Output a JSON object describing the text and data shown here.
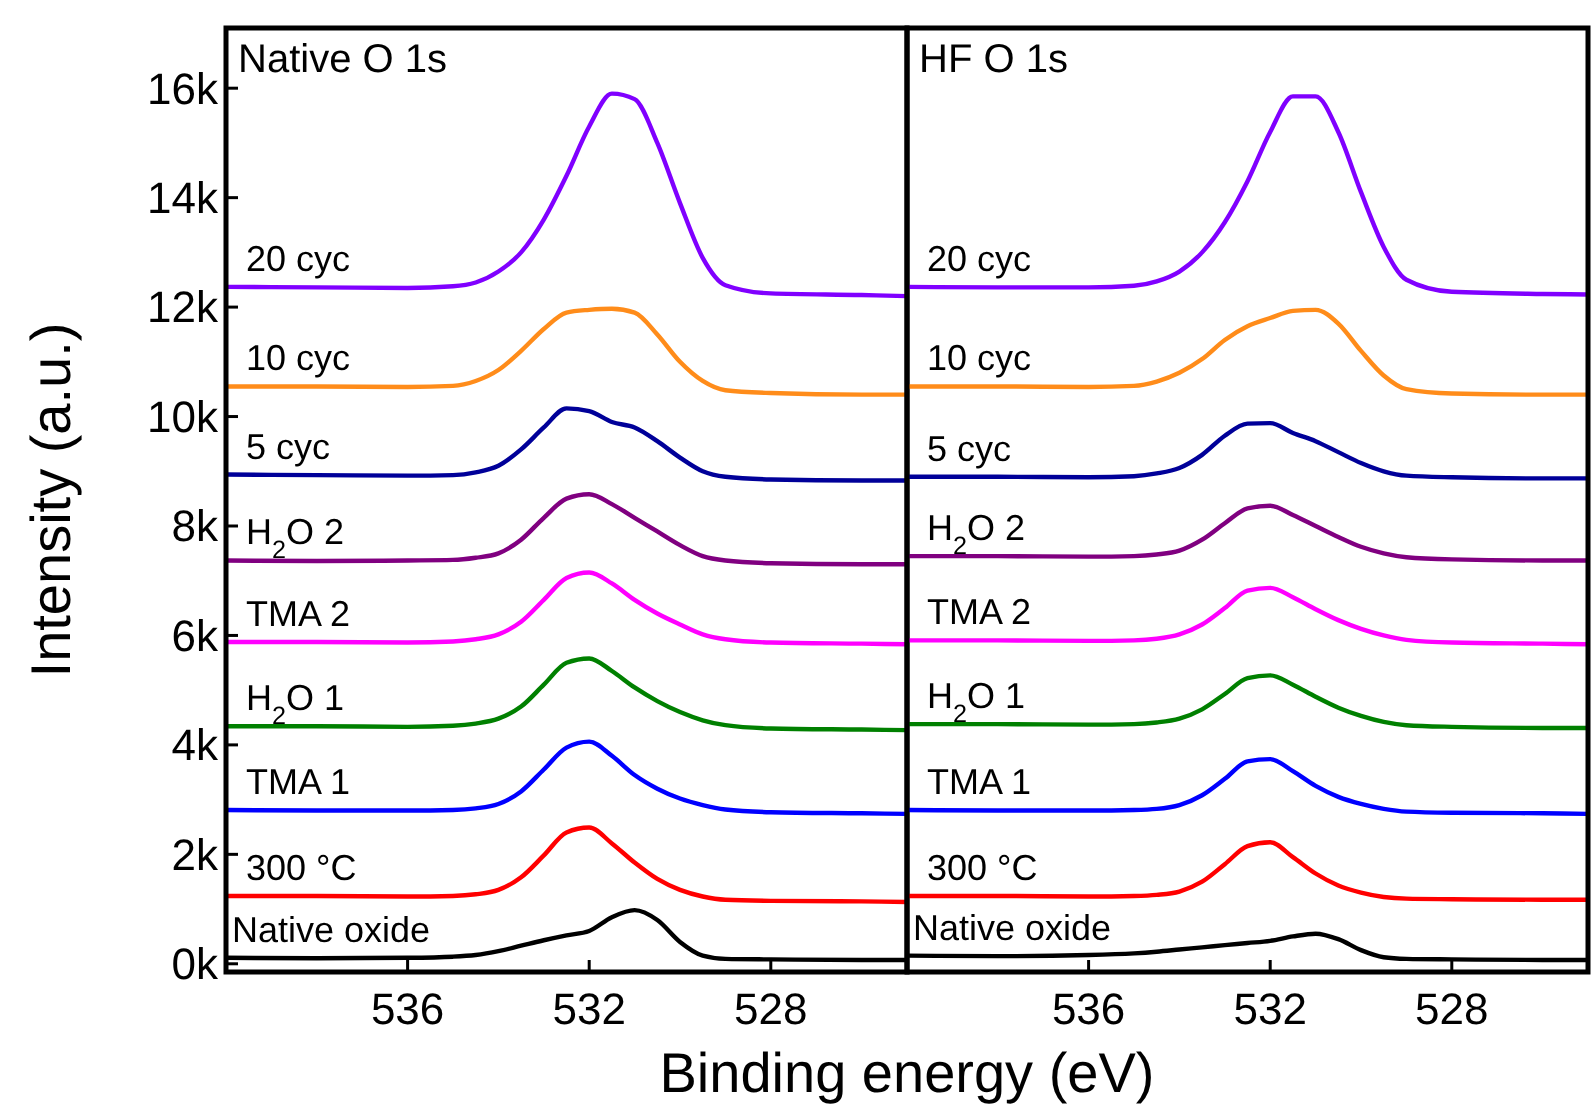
{
  "chart_data": [
    {
      "type": "line",
      "title": "Native O 1s",
      "xlabel": "Binding energy (eV)",
      "ylabel": "Intensity (a.u.)",
      "xlim": [
        540,
        525
      ],
      "xticks": [
        536,
        532,
        528
      ],
      "ylim": [
        -150,
        17100
      ],
      "yticks": [
        {
          "value": 0,
          "label": "0k"
        },
        {
          "value": 2000,
          "label": "2k"
        },
        {
          "value": 4000,
          "label": "4k"
        },
        {
          "value": 6000,
          "label": "6k"
        },
        {
          "value": 8000,
          "label": "8k"
        },
        {
          "value": 10000,
          "label": "10k"
        },
        {
          "value": 12000,
          "label": "12k"
        },
        {
          "value": 14000,
          "label": "14k"
        },
        {
          "value": 16000,
          "label": "16k"
        }
      ],
      "x": [
        540,
        538,
        536,
        535,
        534.5,
        534,
        533.5,
        533,
        532.5,
        532,
        531.5,
        531,
        530.5,
        530,
        529.5,
        529,
        528,
        526,
        525
      ],
      "series": [
        {
          "name": "Native oxide",
          "color": "#000000",
          "values": [
            110,
            100,
            110,
            130,
            160,
            230,
            330,
            430,
            520,
            600,
            850,
            980,
            800,
            400,
            150,
            90,
            80,
            70,
            70
          ]
        },
        {
          "name": "300 °C",
          "color": "#ff0000",
          "values": [
            1240,
            1240,
            1230,
            1240,
            1270,
            1350,
            1580,
            1980,
            2400,
            2490,
            2200,
            1850,
            1550,
            1350,
            1230,
            1170,
            1150,
            1140,
            1130
          ]
        },
        {
          "name": "TMA 1",
          "color": "#0000ff",
          "values": [
            2810,
            2800,
            2800,
            2810,
            2840,
            2920,
            3150,
            3550,
            3950,
            4060,
            3800,
            3450,
            3200,
            3020,
            2900,
            2820,
            2770,
            2750,
            2740
          ]
        },
        {
          "name": "H$_{2}$O 1",
          "color": "#008000",
          "values": [
            4340,
            4340,
            4330,
            4350,
            4390,
            4480,
            4700,
            5100,
            5500,
            5580,
            5350,
            5050,
            4800,
            4600,
            4450,
            4360,
            4300,
            4280,
            4270
          ]
        },
        {
          "name": "TMA 2",
          "color": "#ff00ff",
          "values": [
            5880,
            5880,
            5870,
            5890,
            5930,
            6020,
            6250,
            6650,
            7050,
            7150,
            6950,
            6650,
            6400,
            6200,
            6020,
            5930,
            5870,
            5850,
            5840
          ]
        },
        {
          "name": "H$_{2}$O 2",
          "color": "#800080",
          "values": [
            7370,
            7360,
            7370,
            7380,
            7420,
            7500,
            7750,
            8150,
            8500,
            8580,
            8400,
            8150,
            7900,
            7650,
            7450,
            7370,
            7320,
            7300,
            7300
          ]
        },
        {
          "name": "5 cyc",
          "color": "#000099",
          "values": [
            8940,
            8930,
            8920,
            8930,
            8980,
            9100,
            9400,
            9800,
            10150,
            10100,
            9900,
            9800,
            9550,
            9250,
            9000,
            8900,
            8850,
            8830,
            8830
          ]
        },
        {
          "name": "10 cyc",
          "color": "#ff8c1a",
          "values": [
            10550,
            10550,
            10540,
            10560,
            10650,
            10850,
            11200,
            11600,
            11900,
            11950,
            11970,
            11900,
            11500,
            11000,
            10650,
            10480,
            10430,
            10400,
            10400
          ]
        },
        {
          "name": "20 cyc",
          "color": "#8000ff",
          "values": [
            12370,
            12360,
            12350,
            12380,
            12450,
            12650,
            13000,
            13600,
            14400,
            15300,
            15900,
            15800,
            15000,
            13900,
            12900,
            12400,
            12250,
            12220,
            12200
          ]
        }
      ]
    },
    {
      "type": "line",
      "title": "HF O 1s",
      "xlim": [
        540,
        525
      ],
      "xticks": [
        536,
        532,
        528
      ],
      "ylim": [
        -150,
        17100
      ],
      "tick_labels": "x",
      "x": [
        540,
        538,
        536,
        535,
        534.5,
        534,
        533.5,
        533,
        532.5,
        532,
        531.5,
        531,
        530.5,
        530,
        529.5,
        529,
        528,
        526,
        525
      ],
      "series": [
        {
          "name": "Native oxide",
          "color": "#000000",
          "values": [
            150,
            140,
            160,
            190,
            220,
            260,
            300,
            340,
            380,
            420,
            500,
            550,
            450,
            250,
            120,
            90,
            80,
            70,
            70
          ]
        },
        {
          "name": "300 °C",
          "color": "#ff0000",
          "values": [
            1240,
            1240,
            1230,
            1240,
            1260,
            1320,
            1500,
            1820,
            2150,
            2220,
            1950,
            1650,
            1430,
            1300,
            1220,
            1190,
            1180,
            1170,
            1170
          ]
        },
        {
          "name": "TMA 1",
          "color": "#0000ff",
          "values": [
            2810,
            2800,
            2800,
            2810,
            2830,
            2900,
            3080,
            3380,
            3700,
            3740,
            3520,
            3250,
            3050,
            2920,
            2830,
            2780,
            2760,
            2750,
            2740
          ]
        },
        {
          "name": "H$_{2}$O 1",
          "color": "#008000",
          "values": [
            4380,
            4380,
            4370,
            4380,
            4410,
            4480,
            4650,
            4930,
            5220,
            5270,
            5100,
            4880,
            4680,
            4530,
            4420,
            4360,
            4330,
            4310,
            4310
          ]
        },
        {
          "name": "TMA 2",
          "color": "#ff00ff",
          "values": [
            5910,
            5910,
            5900,
            5910,
            5940,
            6020,
            6200,
            6500,
            6820,
            6870,
            6700,
            6480,
            6280,
            6120,
            6000,
            5920,
            5870,
            5850,
            5840
          ]
        },
        {
          "name": "H$_{2}$O 2",
          "color": "#800080",
          "values": [
            7450,
            7450,
            7440,
            7450,
            7480,
            7550,
            7750,
            8050,
            8320,
            8370,
            8200,
            8000,
            7800,
            7620,
            7500,
            7430,
            7390,
            7370,
            7370
          ]
        },
        {
          "name": "5 cyc",
          "color": "#000099",
          "values": [
            8900,
            8900,
            8890,
            8910,
            8960,
            9060,
            9300,
            9650,
            9870,
            9880,
            9700,
            9550,
            9350,
            9150,
            9000,
            8920,
            8890,
            8870,
            8870
          ]
        },
        {
          "name": "10 cyc",
          "color": "#ff8c1a",
          "values": [
            10550,
            10550,
            10540,
            10560,
            10640,
            10800,
            11050,
            11400,
            11650,
            11800,
            11930,
            11950,
            11700,
            11200,
            10750,
            10500,
            10420,
            10400,
            10400
          ]
        },
        {
          "name": "20 cyc",
          "color": "#8000ff",
          "values": [
            12370,
            12360,
            12360,
            12390,
            12470,
            12650,
            13000,
            13550,
            14300,
            15200,
            15850,
            15850,
            15200,
            14100,
            13100,
            12500,
            12280,
            12240,
            12230
          ]
        }
      ]
    }
  ]
}
